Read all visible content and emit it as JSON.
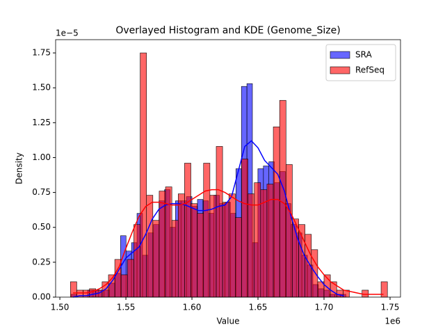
{
  "chart_data": {
    "type": "histogram",
    "title": "Overlayed Histogram and KDE (Genome_Size)",
    "x_label": "Value",
    "y_label": "Density",
    "x_offset_label": "1e6",
    "y_offset_label": "1e−5",
    "xlim": [
      1496800,
      1757900
    ],
    "ylim": [
      0,
      1.845e-05
    ],
    "xticks": [
      {
        "value": 1500000,
        "label": "1.50"
      },
      {
        "value": 1550000,
        "label": "1.55"
      },
      {
        "value": 1600000,
        "label": "1.60"
      },
      {
        "value": 1650000,
        "label": "1.65"
      },
      {
        "value": 1700000,
        "label": "1.70"
      },
      {
        "value": 1750000,
        "label": "1.75"
      }
    ],
    "yticks": [
      {
        "value": 0,
        "label": "0.00"
      },
      {
        "value": 2.5e-06,
        "label": "0.25"
      },
      {
        "value": 5e-06,
        "label": "0.50"
      },
      {
        "value": 7.5e-06,
        "label": "0.75"
      },
      {
        "value": 1e-05,
        "label": "1.00"
      },
      {
        "value": 1.25e-05,
        "label": "1.25"
      },
      {
        "value": 1.5e-05,
        "label": "1.50"
      },
      {
        "value": 1.75e-05,
        "label": "1.75"
      }
    ],
    "legend": "upper right",
    "alpha": 0.6,
    "series": [
      {
        "name": "SRA",
        "color": "#0000ff",
        "bins": [
          1508500,
          1512660,
          1516820,
          1520980,
          1525140,
          1529300,
          1533460,
          1537620,
          1541780,
          1545940,
          1550100,
          1554260,
          1558420,
          1562580,
          1566740,
          1570900,
          1575060,
          1579220,
          1583380,
          1587540,
          1591700,
          1595860,
          1600020,
          1604180,
          1608340,
          1612500,
          1616660,
          1620820,
          1624980,
          1629140,
          1633300,
          1637460,
          1641620,
          1645780,
          1649940,
          1654100,
          1658260,
          1662420,
          1666580,
          1670740,
          1674900,
          1679060,
          1683220,
          1687380,
          1691540,
          1695700,
          1699860,
          1704020,
          1708180,
          1712340,
          1716500
        ],
        "values": [
          2e-07,
          0,
          0,
          5e-07,
          5e-07,
          5e-07,
          5e-07,
          1e-06,
          1.7e-06,
          4.4e-06,
          3.3e-06,
          3.9e-06,
          6e-06,
          3e-06,
          4.6e-06,
          5.2e-06,
          6.9e-06,
          7.7e-06,
          5e-06,
          6.9e-06,
          6.9e-06,
          7.2e-06,
          6.5e-06,
          7e-06,
          6.9e-06,
          6e-06,
          7.3e-06,
          6.7e-06,
          6.8e-06,
          6e-06,
          9.2e-06,
          1.51e-05,
          1.53e-05,
          3.9e-06,
          9.2e-06,
          9.4e-06,
          9.7e-06,
          8.2e-06,
          9e-06,
          6.7e-06,
          5.2e-06,
          4.6e-06,
          3e-06,
          2.3e-06,
          9e-07,
          6e-07,
          5e-07,
          2e-07,
          2e-07,
          2e-07
        ],
        "kde_x": [
          1510000,
          1515000,
          1520000,
          1525000,
          1530000,
          1535000,
          1540000,
          1545000,
          1550000,
          1555000,
          1560000,
          1565000,
          1570000,
          1575000,
          1580000,
          1585000,
          1590000,
          1595000,
          1600000,
          1605000,
          1610000,
          1615000,
          1620000,
          1625000,
          1630000,
          1635000,
          1640000,
          1645000,
          1650000,
          1655000,
          1660000,
          1665000,
          1670000,
          1675000,
          1680000,
          1685000,
          1690000,
          1695000,
          1700000,
          1705000,
          1710000,
          1715000
        ],
        "kde": [
          0,
          1e-07,
          1e-07,
          2e-07,
          3e-07,
          6e-07,
          1.2e-06,
          2e-06,
          2.8e-06,
          3.2e-06,
          3.6e-06,
          4.5e-06,
          5.6e-06,
          6.3e-06,
          6.6e-06,
          6.7e-06,
          6.7e-06,
          6.6e-06,
          6.4e-06,
          6.2e-06,
          6.2e-06,
          6.3e-06,
          6.5e-06,
          6.6e-06,
          7.2e-06,
          9e-06,
          1.08e-05,
          1.12e-05,
          1.07e-05,
          9.8e-06,
          9.3e-06,
          8.8e-06,
          7.6e-06,
          5.8e-06,
          4.2e-06,
          3e-06,
          2.2e-06,
          1.5e-06,
          9e-07,
          5e-07,
          2e-07,
          1e-07
        ]
      },
      {
        "name": "RefSeq",
        "color": "#ff0000",
        "bins": [
          1508000,
          1512800,
          1517600,
          1522400,
          1527200,
          1532000,
          1536800,
          1541600,
          1546400,
          1551200,
          1556000,
          1560800,
          1565600,
          1570400,
          1575200,
          1580000,
          1584800,
          1589600,
          1594400,
          1599200,
          1604000,
          1608800,
          1613600,
          1618400,
          1623200,
          1628000,
          1632800,
          1637600,
          1642400,
          1647200,
          1652000,
          1656800,
          1661600,
          1666400,
          1671200,
          1676000,
          1680800,
          1685600,
          1690400,
          1695200,
          1700000,
          1704800,
          1709600,
          1714400,
          1719200,
          1724000,
          1728800,
          1733600,
          1738400,
          1743200,
          1748000
        ],
        "values": [
          1.1e-06,
          5e-07,
          5e-07,
          6e-07,
          5e-07,
          1.1e-06,
          1.6e-06,
          2.7e-06,
          1.6e-06,
          2.7e-06,
          5.2e-06,
          1.75e-05,
          7.3e-06,
          5.5e-06,
          7.6e-06,
          7.9e-06,
          5.5e-06,
          7.4e-06,
          9.6e-06,
          6.7e-06,
          6e-06,
          9.6e-06,
          7.3e-06,
          1.08e-05,
          6.8e-06,
          7.4e-06,
          5.7e-06,
          9.9e-06,
          7.4e-06,
          8.2e-06,
          7.7e-06,
          8.1e-06,
          1.22e-05,
          1.41e-05,
          9.5e-06,
          5.6e-06,
          5.2e-06,
          4.5e-06,
          3.4e-06,
          1.1e-06,
          1.6e-06,
          1.1e-06,
          5e-07,
          5e-07,
          0,
          0,
          5e-07,
          0,
          0,
          1.1e-06
        ],
        "kde_x": [
          1510000,
          1515000,
          1520000,
          1525000,
          1530000,
          1535000,
          1540000,
          1545000,
          1550000,
          1555000,
          1560000,
          1565000,
          1570000,
          1575000,
          1580000,
          1585000,
          1590000,
          1595000,
          1600000,
          1605000,
          1610000,
          1615000,
          1620000,
          1625000,
          1630000,
          1635000,
          1640000,
          1645000,
          1650000,
          1655000,
          1660000,
          1665000,
          1670000,
          1675000,
          1680000,
          1685000,
          1690000,
          1695000,
          1700000,
          1705000,
          1710000,
          1715000,
          1720000,
          1725000,
          1730000,
          1735000,
          1740000,
          1745000
        ],
        "kde": [
          3e-07,
          3e-07,
          3e-07,
          4e-07,
          6e-07,
          9e-07,
          1.4e-06,
          2.2e-06,
          3.5e-06,
          4.7e-06,
          5.8e-06,
          6.5e-06,
          6.8e-06,
          6.8e-06,
          6.7e-06,
          6.6e-06,
          6.6e-06,
          6.7e-06,
          7e-06,
          7.3e-06,
          7.6e-06,
          7.7e-06,
          7.7e-06,
          7.5e-06,
          7.2e-06,
          6.9e-06,
          6.7e-06,
          6.6e-06,
          6.6e-06,
          6.8e-06,
          7e-06,
          7e-06,
          6.7e-06,
          6e-06,
          5e-06,
          4e-06,
          3e-06,
          2.2e-06,
          1.6e-06,
          1.1e-06,
          8e-07,
          5e-07,
          4e-07,
          3e-07,
          2e-07,
          2e-07,
          2e-07,
          2e-07
        ]
      }
    ]
  }
}
